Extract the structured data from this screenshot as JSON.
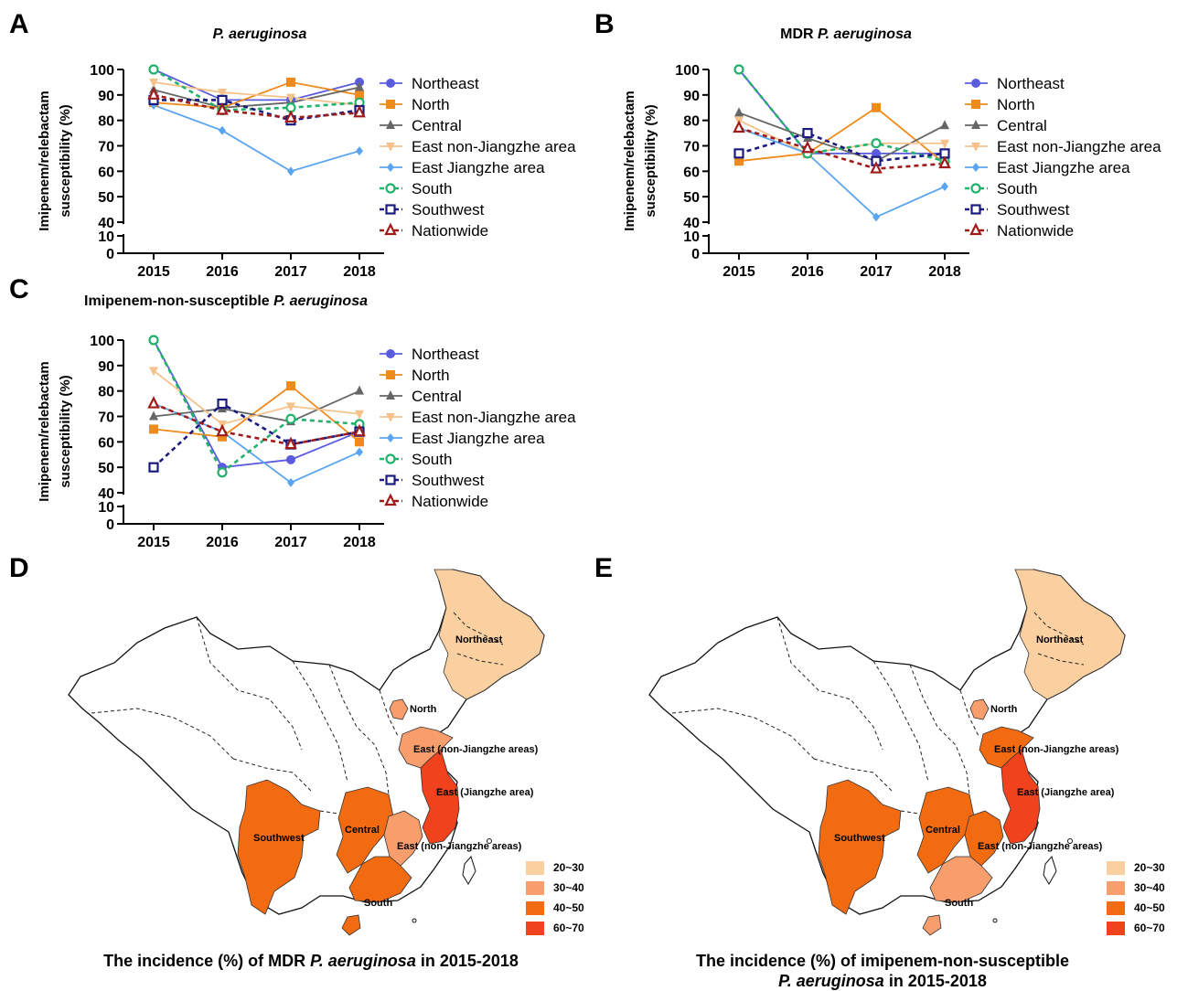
{
  "panels": {
    "A": "A",
    "B": "B",
    "C": "C",
    "D": "D",
    "E": "E"
  },
  "legend_entries": [
    "Northeast",
    "North",
    "Central",
    "East non-Jiangzhe area",
    "East Jiangzhe area",
    "South",
    "Southwest",
    "Nationwide"
  ],
  "series_style": {
    "Northeast": {
      "color": "#5b5bdf",
      "marker": "circle",
      "dash": false
    },
    "North": {
      "color": "#ef8a1c",
      "marker": "square",
      "dash": false
    },
    "Central": {
      "color": "#666666",
      "marker": "triangle",
      "dash": false
    },
    "East non-Jiangzhe area": {
      "color": "#f5c28b",
      "marker": "triangle-down",
      "dash": false
    },
    "East Jiangzhe area": {
      "color": "#5aa5ef",
      "marker": "diamond",
      "dash": false
    },
    "South": {
      "color": "#21b26c",
      "marker": "open-circle",
      "dash": true
    },
    "Southwest": {
      "color": "#1a1a80",
      "marker": "open-square",
      "dash": true
    },
    "Nationwide": {
      "color": "#a01a1a",
      "marker": "open-triangle",
      "dash": true
    }
  },
  "chart_data": [
    {
      "type": "line",
      "title_plain": "",
      "title_italic": "P. aeruginosa",
      "ylabel": "Imipenem/relebactam susceptibility (%)",
      "x": [
        "2015",
        "2016",
        "2017",
        "2018"
      ],
      "yticks": [
        0,
        10,
        40,
        50,
        60,
        70,
        80,
        90,
        100
      ],
      "ylim": [
        0,
        100
      ],
      "axis_break": [
        10,
        40
      ],
      "series": [
        {
          "name": "Northeast",
          "values": [
            100,
            88,
            88,
            95
          ]
        },
        {
          "name": "North",
          "values": [
            87,
            85,
            95,
            90
          ]
        },
        {
          "name": "Central",
          "values": [
            92,
            85,
            87,
            93
          ]
        },
        {
          "name": "East non-Jiangzhe area",
          "values": [
            95,
            91,
            89,
            86
          ]
        },
        {
          "name": "East Jiangzhe area",
          "values": [
            86,
            76,
            60,
            68
          ]
        },
        {
          "name": "South",
          "values": [
            100,
            84,
            85,
            87
          ]
        },
        {
          "name": "Southwest",
          "values": [
            88,
            88,
            80,
            84
          ]
        },
        {
          "name": "Nationwide",
          "values": [
            90,
            84,
            81,
            83
          ]
        }
      ]
    },
    {
      "type": "line",
      "title_plain": "MDR ",
      "title_italic": "P. aeruginosa",
      "ylabel": "Imipenem/relebactam susceptibility (%)",
      "x": [
        "2015",
        "2016",
        "2017",
        "2018"
      ],
      "yticks": [
        0,
        10,
        40,
        50,
        60,
        70,
        80,
        90,
        100
      ],
      "ylim": [
        0,
        100
      ],
      "axis_break": [
        10,
        40
      ],
      "series": [
        {
          "name": "Northeast",
          "values": [
            100,
            67,
            67,
            67
          ]
        },
        {
          "name": "North",
          "values": [
            64,
            67,
            85,
            63
          ]
        },
        {
          "name": "Central",
          "values": [
            83,
            73,
            64,
            78
          ]
        },
        {
          "name": "East non-Jiangzhe area",
          "values": [
            80,
            67,
            71,
            71
          ]
        },
        {
          "name": "East Jiangzhe area",
          "values": [
            77,
            67,
            42,
            54
          ]
        },
        {
          "name": "South",
          "values": [
            100,
            67,
            71,
            64
          ]
        },
        {
          "name": "Southwest",
          "values": [
            67,
            75,
            64,
            67
          ]
        },
        {
          "name": "Nationwide",
          "values": [
            77,
            69,
            61,
            63
          ]
        }
      ]
    },
    {
      "type": "line",
      "title_plain": "Imipenem-non-susceptible ",
      "title_italic": "P. aeruginosa",
      "ylabel": "Imipenem/relebactam susceptibility (%)",
      "x": [
        "2015",
        "2016",
        "2017",
        "2018"
      ],
      "yticks": [
        0,
        10,
        40,
        50,
        60,
        70,
        80,
        90,
        100
      ],
      "ylim": [
        0,
        100
      ],
      "axis_break": [
        10,
        40
      ],
      "series": [
        {
          "name": "Northeast",
          "values": [
            100,
            50,
            53,
            64
          ]
        },
        {
          "name": "North",
          "values": [
            65,
            62,
            82,
            60
          ]
        },
        {
          "name": "Central",
          "values": [
            70,
            73,
            68,
            80
          ]
        },
        {
          "name": "East non-Jiangzhe area",
          "values": [
            88,
            67,
            74,
            71
          ]
        },
        {
          "name": "East Jiangzhe area",
          "values": [
            75,
            64,
            44,
            56
          ]
        },
        {
          "name": "South",
          "values": [
            100,
            48,
            69,
            67
          ]
        },
        {
          "name": "Southwest",
          "values": [
            50,
            75,
            59,
            64
          ]
        },
        {
          "name": "Nationwide",
          "values": [
            75,
            64,
            59,
            64
          ]
        }
      ]
    }
  ],
  "maps": [
    {
      "caption_line1_plain": "The incidence (%) of MDR ",
      "caption_line1_italic": "P. aeruginosa",
      "caption_line1_tail": " in 2015-2018",
      "caption_line2_italic": "",
      "caption_line2_tail": "",
      "region_labels": [
        "Northeast",
        "North",
        "East (non-Jiangzhe areas)",
        "East (Jiangzhe area)",
        "Southwest",
        "Central",
        "East (non-Jiangzhe areas)",
        "South"
      ],
      "region_levels": {
        "northeast": "20~30",
        "north": "30~40",
        "eastnj": "30~40",
        "eastj": "60~70",
        "southwest": "40~50",
        "central": "40~50",
        "east2": "30~40",
        "south": "40~50"
      }
    },
    {
      "caption_line1_plain": "The incidence (%) of imipenem-non-susceptible",
      "caption_line1_italic": "",
      "caption_line1_tail": "",
      "caption_line2_italic": "P. aeruginosa",
      "caption_line2_tail": " in 2015-2018",
      "region_labels": [
        "Northeast",
        "North",
        "East (non-Jiangzhe areas)",
        "East (Jiangzhe area)",
        "Southwest",
        "Central",
        "East (non-Jiangzhe areas)",
        "South"
      ],
      "region_levels": {
        "northeast": "20~30",
        "north": "30~40",
        "eastnj": "40~50",
        "eastj": "60~70",
        "southwest": "40~50",
        "central": "40~50",
        "east2": "40~50",
        "south": "30~40"
      }
    }
  ],
  "scale": [
    {
      "label": "20~30",
      "color": "#fbd0a0"
    },
    {
      "label": "30~40",
      "color": "#f89e6c"
    },
    {
      "label": "40~50",
      "color": "#f26b10"
    },
    {
      "label": "60~70",
      "color": "#f0421c"
    }
  ]
}
